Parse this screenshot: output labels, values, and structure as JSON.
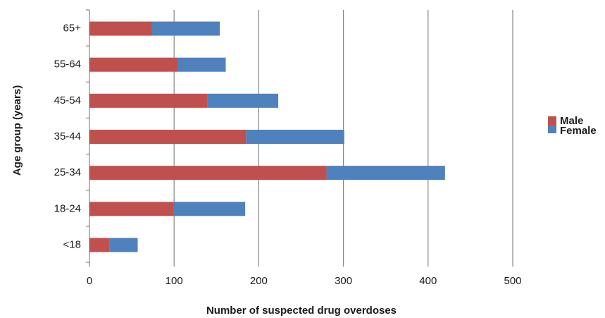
{
  "chart_data": {
    "type": "bar",
    "orientation": "horizontal",
    "stacked": true,
    "categories": [
      "<18",
      "18-24",
      "25-34",
      "35-44",
      "45-54",
      "55-64",
      "65+"
    ],
    "series": [
      {
        "name": "Male",
        "color": "#c0504d",
        "values": [
          24,
          99,
          280,
          185,
          139,
          104,
          74
        ]
      },
      {
        "name": "Female",
        "color": "#4f81bd",
        "values": [
          33,
          85,
          140,
          116,
          84,
          57,
          80
        ]
      }
    ],
    "title": "",
    "xlabel": "Number of suspected drug overdoses",
    "ylabel": "Age group (years)",
    "xlim": [
      0,
      500
    ],
    "xticks": [
      0,
      100,
      200,
      300,
      400,
      500
    ],
    "grid": "vertical",
    "legend": "right"
  }
}
